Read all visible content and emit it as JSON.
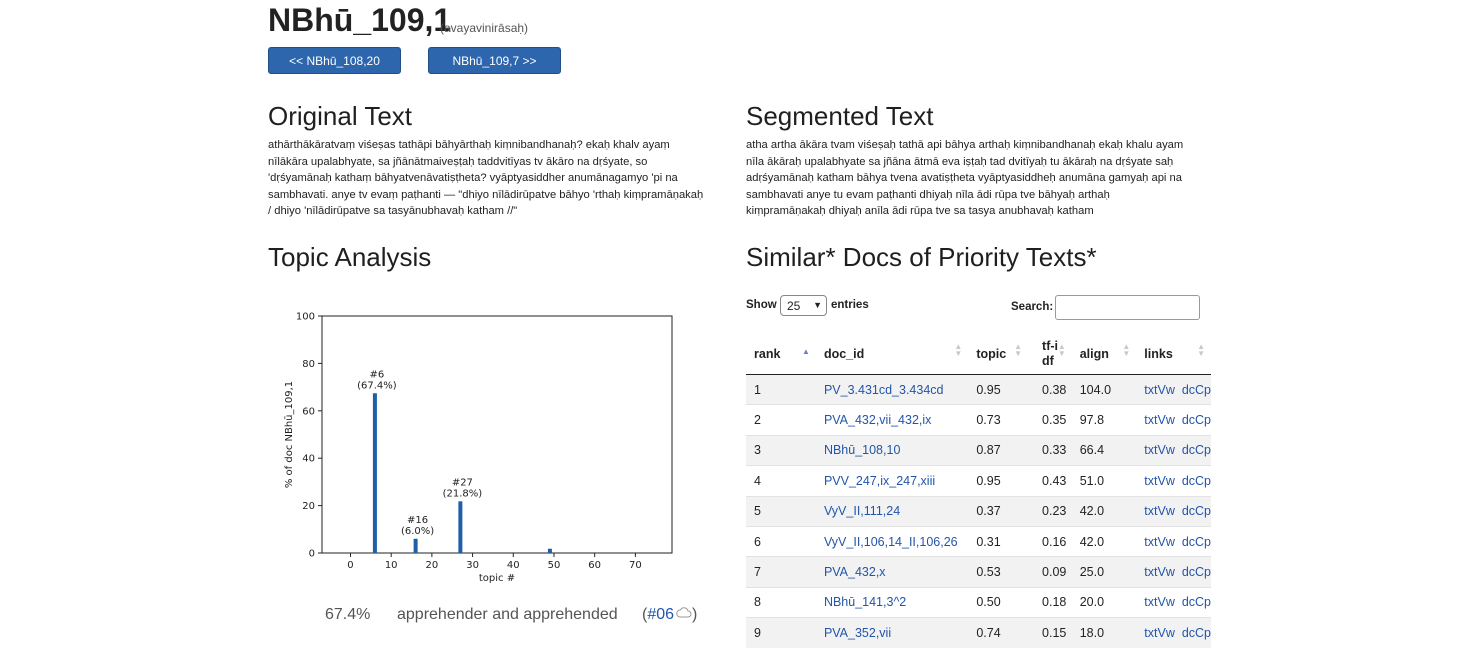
{
  "header": {
    "title": "NBhū_109,1",
    "subtitle": "(avayavinirāsaḥ)",
    "prev_label": "<< NBhū_108,20",
    "next_label": "NBhū_109,7 >>"
  },
  "original": {
    "heading": "Original Text",
    "lines": [
      "athārthākāratvaṃ viśeṣas tathāpi bāhyārthaḥ kiṃnibandhanaḥ? ekaḥ khalv ayaṃ",
      "nīlākāra upalabhyate, sa jñānātmaiveṣṭaḥ taddvitīyas tv ākāro na dṛśyate, so",
      "'dṛśyamānaḥ kathaṃ bāhyatvenāvatiṣṭheta? vyāptyasiddher anumānagamyo 'pi na",
      "sambhavati. anye tv evaṃ paṭhanti — \"dhiyo nīlādirūpatve bāhyo 'rthaḥ kiṃpramāṇakaḥ",
      "/ dhiyo 'nīlādirūpatve sa tasyānubhavaḥ katham //\""
    ]
  },
  "segmented": {
    "heading": "Segmented Text",
    "lines": [
      "atha artha ākāra tvam viśeṣaḥ tathā api bāhya arthaḥ kiṃnibandhanaḥ ekaḥ khalu ayam",
      "nīla ākāraḥ upalabhyate sa jñāna ātmā eva iṣṭaḥ tad dvitīyaḥ tu ākāraḥ na dṛśyate saḥ",
      "adṛśyamānaḥ katham bāhya tvena avatiṣṭheta vyāptyasiddheḥ anumāna gamyaḥ api na",
      "sambhavati anye tu evam paṭhanti dhiyaḥ nīla ādi rūpa tve bāhyaḥ arthaḥ",
      "kiṃpramāṇakaḥ dhiyaḥ anīla ādi rūpa tve sa tasya anubhavaḥ katham"
    ]
  },
  "topic_analysis": {
    "heading": "Topic Analysis",
    "top_topic": {
      "percent": "67.4%",
      "label": "apprehender and apprehended",
      "link": "#06",
      "icon": "cloud-icon"
    }
  },
  "similar": {
    "heading": "Similar* Docs of Priority Texts*",
    "show_label": "Show",
    "entries_value": "25",
    "entries_label": "entries",
    "search_label": "Search:",
    "columns": [
      "rank",
      "doc_id",
      "topic",
      "tf-idf",
      "align",
      "links"
    ],
    "rows": [
      {
        "rank": "1",
        "doc_id": "PV_3.431cd_3.434cd",
        "topic": "0.95",
        "tfidf": "0.38",
        "align": "104.0",
        "link1": "txtVw",
        "link2": "dcCp"
      },
      {
        "rank": "2",
        "doc_id": "PVA_432,vii_432,ix",
        "topic": "0.73",
        "tfidf": "0.35",
        "align": "97.8",
        "link1": "txtVw",
        "link2": "dcCp"
      },
      {
        "rank": "3",
        "doc_id": "NBhū_108,10",
        "topic": "0.87",
        "tfidf": "0.33",
        "align": "66.4",
        "link1": "txtVw",
        "link2": "dcCp"
      },
      {
        "rank": "4",
        "doc_id": "PVV_247,ix_247,xiii",
        "topic": "0.95",
        "tfidf": "0.43",
        "align": "51.0",
        "link1": "txtVw",
        "link2": "dcCp"
      },
      {
        "rank": "5",
        "doc_id": "VyV_II,111,24",
        "topic": "0.37",
        "tfidf": "0.23",
        "align": "42.0",
        "link1": "txtVw",
        "link2": "dcCp"
      },
      {
        "rank": "6",
        "doc_id": "VyV_II,106,14_II,106,26",
        "topic": "0.31",
        "tfidf": "0.16",
        "align": "42.0",
        "link1": "txtVw",
        "link2": "dcCp"
      },
      {
        "rank": "7",
        "doc_id": "PVA_432,x",
        "topic": "0.53",
        "tfidf": "0.09",
        "align": "25.0",
        "link1": "txtVw",
        "link2": "dcCp"
      },
      {
        "rank": "8",
        "doc_id": "NBhū_141,3^2",
        "topic": "0.50",
        "tfidf": "0.18",
        "align": "20.0",
        "link1": "txtVw",
        "link2": "dcCp"
      },
      {
        "rank": "9",
        "doc_id": "PVA_352,vii",
        "topic": "0.74",
        "tfidf": "0.15",
        "align": "18.0",
        "link1": "txtVw",
        "link2": "dcCp"
      }
    ]
  },
  "chart_data": {
    "type": "bar",
    "xlabel": "topic #",
    "ylabel": "% of doc NBhū_109,1",
    "xlim": [
      -7,
      79
    ],
    "ylim": [
      0,
      100
    ],
    "xticks": [
      0,
      10,
      20,
      30,
      40,
      50,
      60,
      70
    ],
    "yticks": [
      0,
      20,
      40,
      60,
      80,
      100
    ],
    "color": "#1f5fa6",
    "bars": [
      {
        "topic": 6,
        "value": 67.4,
        "label": "#6",
        "sublabel": "(67.4%)"
      },
      {
        "topic": 16,
        "value": 6.0,
        "label": "#16",
        "sublabel": "(6.0%)"
      },
      {
        "topic": 27,
        "value": 21.8,
        "label": "#27",
        "sublabel": "(21.8%)"
      },
      {
        "topic": 49,
        "value": 1.8,
        "label": "",
        "sublabel": ""
      }
    ]
  }
}
